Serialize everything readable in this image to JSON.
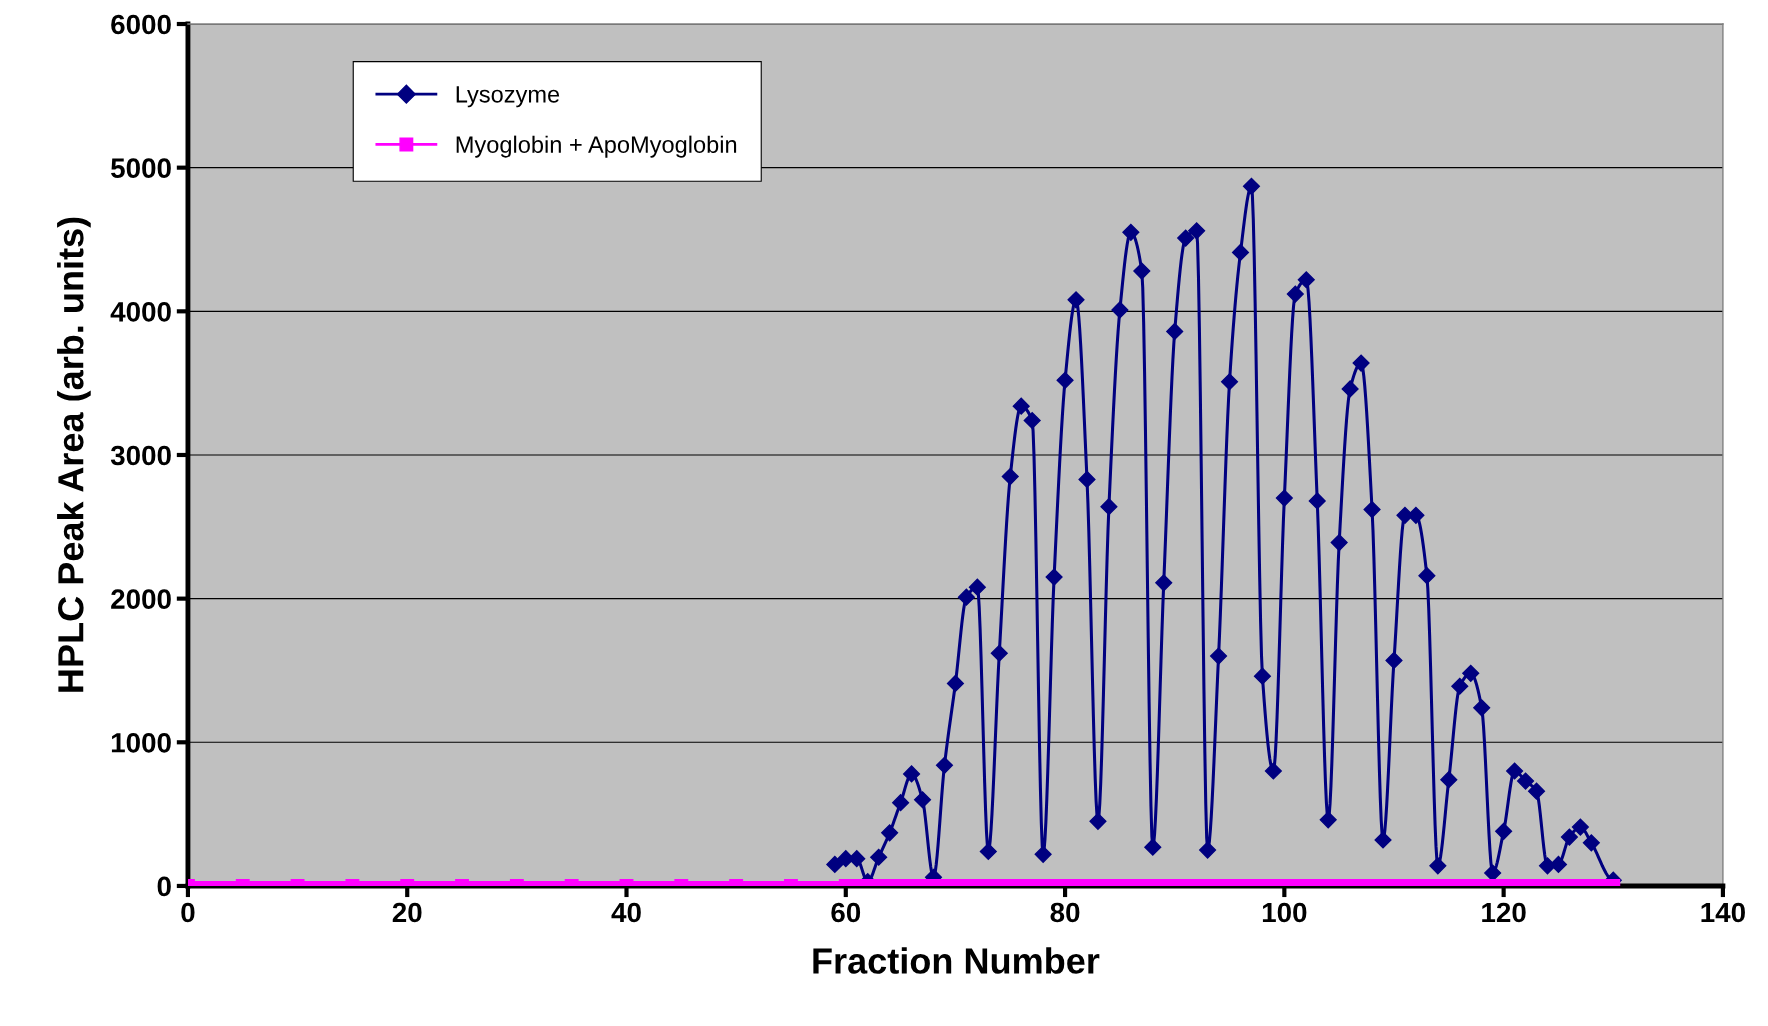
{
  "chart_data": {
    "type": "line",
    "xlabel": "Fraction Number",
    "ylabel": "HPLC Peak Area (arb. units)",
    "xlim": [
      0,
      140
    ],
    "xticks": [
      0,
      20,
      40,
      60,
      80,
      100,
      120,
      140
    ],
    "ylim": [
      0,
      6000
    ],
    "yticks": [
      0,
      1000,
      2000,
      3000,
      4000,
      5000,
      6000
    ],
    "grid": "y",
    "legend": "top left",
    "line_style": "solid",
    "series": [
      {
        "name": "Lysozyme",
        "color": "#000080",
        "marker": "diamond",
        "x": [
          59,
          60,
          61,
          62,
          63,
          64,
          65,
          66,
          67,
          68,
          69,
          70,
          71,
          72,
          73,
          74,
          75,
          76,
          77,
          78,
          79,
          80,
          81,
          82,
          83,
          84,
          85,
          86,
          87,
          88,
          89,
          90,
          91,
          92,
          93,
          94,
          95,
          96,
          97,
          98,
          99,
          100,
          101,
          102,
          103,
          104,
          105,
          106,
          107,
          108,
          109,
          110,
          111,
          112,
          113,
          114,
          115,
          116,
          117,
          118,
          119,
          120,
          121,
          122,
          123,
          124,
          125,
          126,
          127,
          128,
          130
        ],
        "values": [
          150,
          190,
          190,
          30,
          200,
          370,
          580,
          780,
          600,
          60,
          840,
          1410,
          2010,
          2080,
          240,
          1620,
          2850,
          3340,
          3240,
          220,
          2150,
          3520,
          4080,
          2830,
          450,
          2640,
          4010,
          4550,
          4280,
          270,
          2110,
          3860,
          4510,
          4560,
          250,
          1600,
          3510,
          4410,
          4870,
          1460,
          800,
          2700,
          4120,
          4220,
          2680,
          460,
          2390,
          3460,
          3640,
          2620,
          320,
          1570,
          2580,
          2580,
          2160,
          140,
          740,
          1390,
          1480,
          1240,
          90,
          380,
          800,
          730,
          660,
          140,
          150,
          340,
          410,
          300,
          40
        ]
      },
      {
        "name": "Myoglobin + ApoMyoglobin",
        "color": "#ff00ff",
        "marker": "square",
        "x": [
          0,
          5,
          10,
          15,
          20,
          25,
          30,
          35,
          40,
          45,
          50,
          55,
          60,
          61,
          62,
          63,
          64,
          65,
          66,
          67,
          68,
          69,
          70,
          71,
          72,
          73,
          74,
          75,
          76,
          77,
          78,
          79,
          80,
          81,
          82,
          83,
          84,
          85,
          86,
          87,
          88,
          89,
          90,
          91,
          92,
          93,
          94,
          95,
          96,
          97,
          98,
          99,
          100,
          101,
          102,
          103,
          104,
          105,
          106,
          107,
          108,
          109,
          110,
          111,
          112,
          113,
          114,
          115,
          116,
          117,
          118,
          119,
          120,
          121,
          122,
          123,
          124,
          125,
          126,
          127,
          128,
          129,
          130
        ],
        "values": [
          0,
          0,
          0,
          0,
          0,
          0,
          0,
          0,
          0,
          0,
          0,
          0,
          0,
          0,
          0,
          0,
          0,
          0,
          0,
          0,
          0,
          0,
          0,
          0,
          0,
          0,
          0,
          0,
          0,
          0,
          0,
          0,
          0,
          0,
          0,
          0,
          0,
          0,
          0,
          0,
          0,
          0,
          0,
          0,
          0,
          0,
          0,
          0,
          0,
          0,
          0,
          0,
          0,
          0,
          0,
          0,
          0,
          0,
          0,
          0,
          0,
          0,
          0,
          0,
          0,
          0,
          0,
          0,
          0,
          0,
          0,
          0,
          0,
          0,
          0,
          0,
          0,
          0,
          0,
          0,
          0,
          0,
          0
        ]
      }
    ]
  }
}
